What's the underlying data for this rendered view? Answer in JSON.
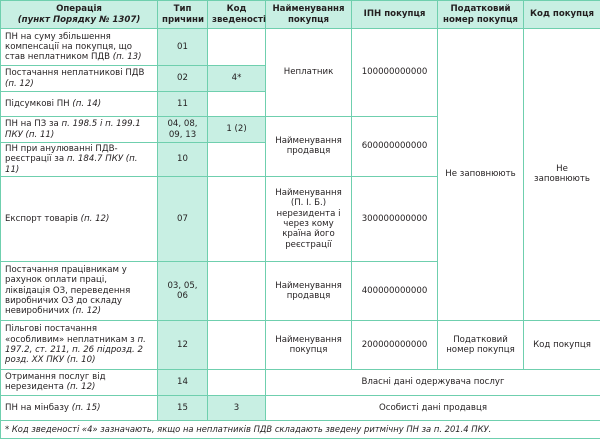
{
  "header": {
    "operation": "Операція",
    "operation_ref": "(пункт Порядку № 1307)",
    "reason_type": "Тип причини",
    "consolidation_code": "Код зведеності",
    "buyer_name": "Найменування покупця",
    "buyer_ipn": "ІПН покупця",
    "buyer_tax_number": "Податковий номер покупця",
    "buyer_code": "Код покупця"
  },
  "rows": [
    {
      "operation": "ПН на суму збільшення компенсації на покупця, що став неплатником ПДВ",
      "ref": "(п. 13)",
      "type": "01",
      "code": ""
    },
    {
      "operation": "Постачання неплатникові ПДВ",
      "ref": "(п. 12)",
      "type": "02",
      "code": "4*"
    },
    {
      "operation": "Підсумкові ПН",
      "ref": "(п. 14)",
      "type": "11",
      "code": ""
    },
    {
      "operation": "ПН на ПЗ за",
      "ref": "п. 198.5 і п. 199.1 ПКУ (п. 11)",
      "type": "04, 08, 09, 13",
      "code": "1 (2)"
    },
    {
      "operation": "ПН при анулюванні ПДВ-реєстрації за",
      "ref": "п. 184.7 ПКУ (п. 11)",
      "type": "10",
      "code": ""
    },
    {
      "operation": "Експорт товарів",
      "ref": "(п. 12)",
      "type": "07",
      "code": ""
    },
    {
      "operation": "Постачання працівникам у рахунок оплати праці, ліквідація ОЗ, переведення виробничих ОЗ до складу невиробничих",
      "ref": "(п. 12)",
      "type": "03, 05, 06",
      "code": ""
    },
    {
      "operation": "Пільгові постачання «особливим» неплатникам з",
      "ref": "п. 197.2, ст. 211, п. 26 підрозд. 2 розд. ХХ ПКУ (п. 10)",
      "type": "12",
      "code": ""
    },
    {
      "operation": "Отримання послуг від нерезидента",
      "ref": "(п. 12)",
      "type": "14",
      "code": ""
    },
    {
      "operation": "ПН на мінбазу",
      "ref": "(п. 15)",
      "type": "15",
      "code": "3"
    }
  ],
  "merged": {
    "name_nonpayer": "Неплатник",
    "ipn_nonpayer": "100000000000",
    "name_seller_1": "Найменування продавця",
    "ipn_seller_1": "600000000000",
    "name_nonresident": "Найменування (П. І. Б.) нерезидента і через кому країна його реєстрації",
    "ipn_nonresident": "300000000000",
    "name_seller_2": "Найменування продавця",
    "ipn_seller_2": "400000000000",
    "name_buyer": "Найменування покупця",
    "ipn_buyer": "200000000000",
    "tax_number_buyer": "Податковий номер покупця",
    "code_buyer": "Код покупця",
    "not_filled_tax": "Не заповнюють",
    "not_filled_code": "Не заповнюють",
    "own_data": "Власні дані одержувача послуг",
    "seller_personal": "Особисті дані продавця"
  },
  "footnote": "* Код зведеності «4» зазначають, якщо на неплатників ПДВ складають зведену ритмічну ПН за п. 201.4 ПКУ.",
  "colors": {
    "accent_fill": "#c8efe3",
    "border": "#6fcfae"
  }
}
